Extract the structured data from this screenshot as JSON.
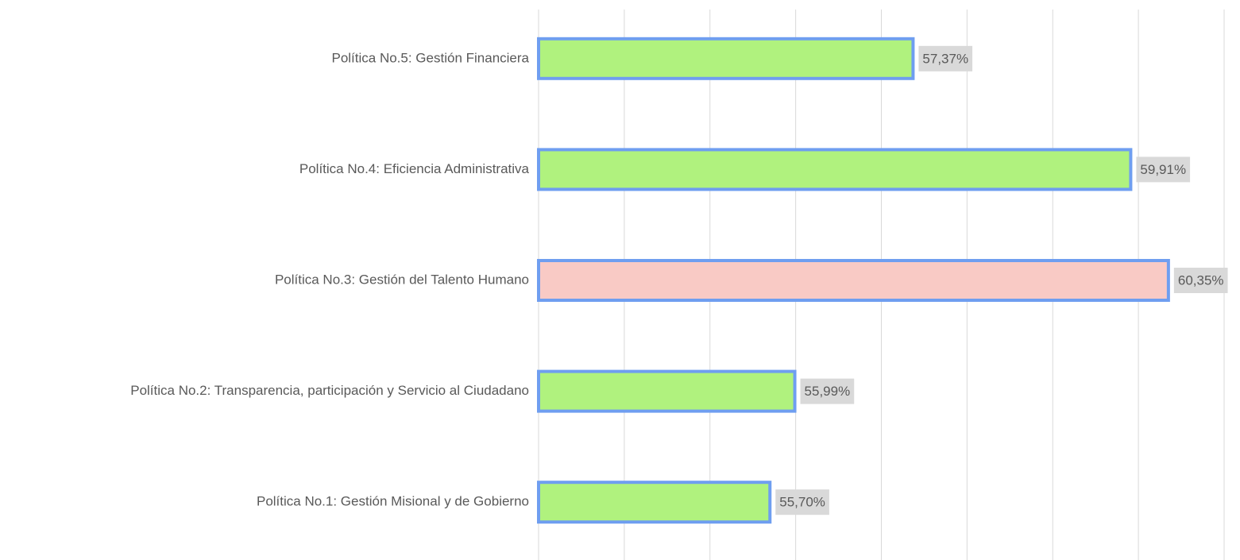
{
  "chart_data": {
    "type": "barh",
    "categories": [
      "Política No.1: Gestión Misional y de Gobierno",
      "Política No.2: Transparencia, participación y Servicio al Ciudadano",
      "Política No.3: Gestión del Talento Humano",
      "Política No.4: Eficiencia Administrativa",
      "Política No.5: Gestión Financiera"
    ],
    "values": [
      55.7,
      55.99,
      60.35,
      59.91,
      57.37
    ],
    "value_labels": [
      "55,70%",
      "55,99%",
      "60,35%",
      "59,91%",
      "57,37%"
    ],
    "colors": [
      "#b0f27e",
      "#b0f27e",
      "#f9cac5",
      "#b0f27e",
      "#b0f27e"
    ],
    "edge_color": "#6f9ef0",
    "xlim": [
      53,
      61
    ],
    "xticks": [
      53,
      54,
      55,
      56,
      57,
      58,
      59,
      60,
      61
    ],
    "grid": true
  }
}
